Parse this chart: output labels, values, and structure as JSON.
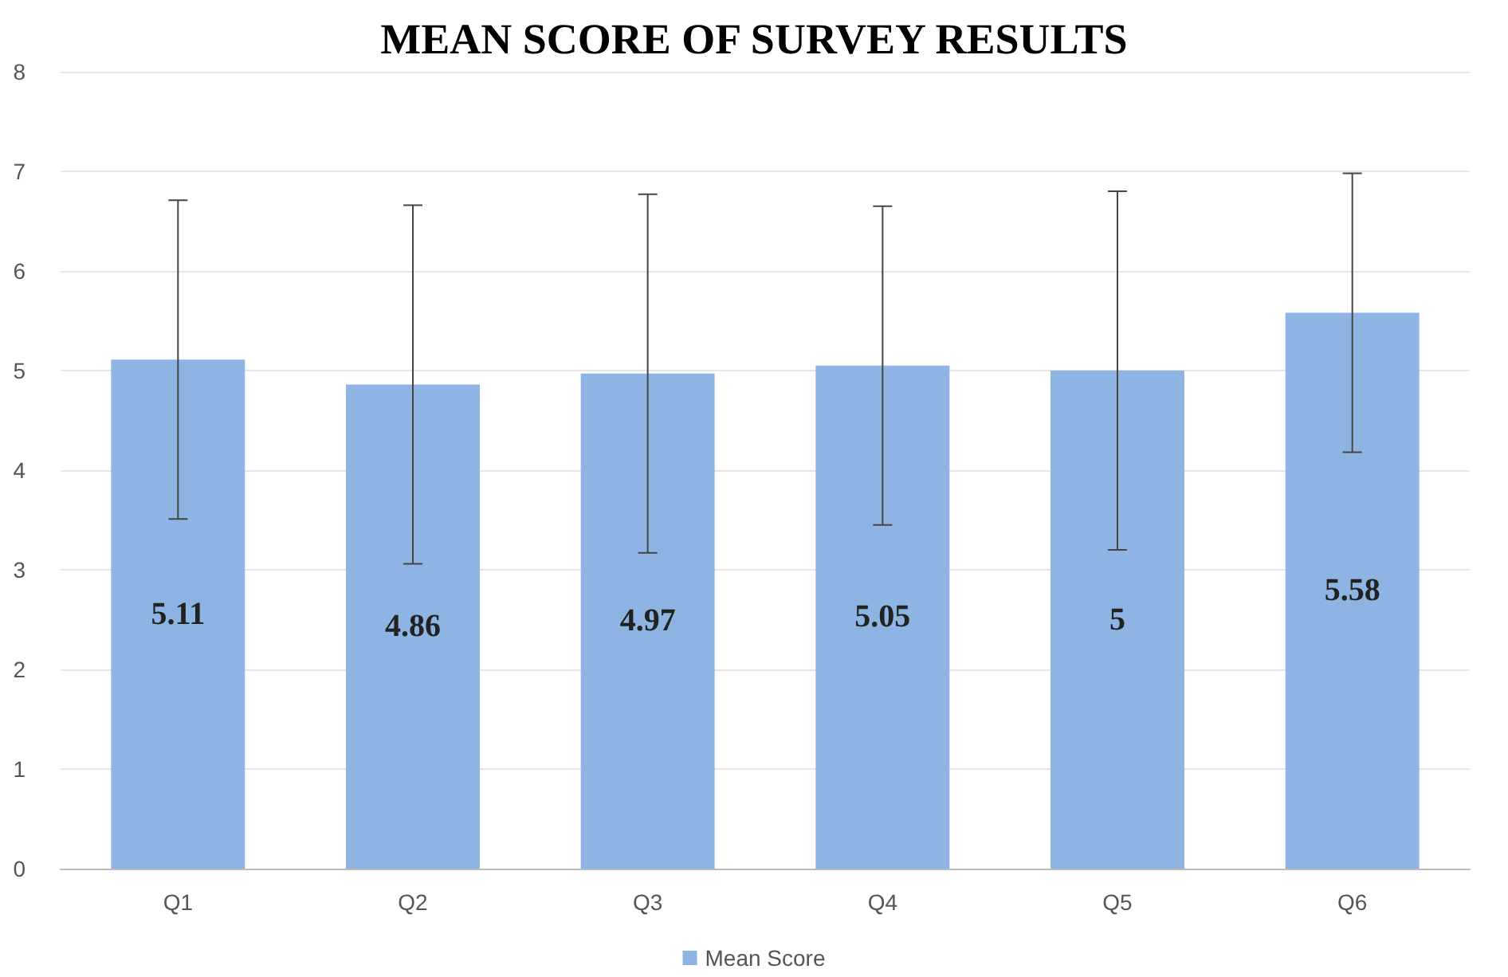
{
  "chart_data": {
    "type": "bar",
    "title": "MEAN SCORE OF SURVEY RESULTS",
    "categories": [
      "Q1",
      "Q2",
      "Q3",
      "Q4",
      "Q5",
      "Q6"
    ],
    "series": [
      {
        "name": "Mean Score",
        "color": "#8db4e2",
        "values": [
          5.11,
          4.86,
          4.97,
          5.05,
          5,
          5.58
        ],
        "errors": [
          1.6,
          1.8,
          1.8,
          1.6,
          1.8,
          1.4
        ]
      }
    ],
    "ylim": [
      0,
      8
    ],
    "yticks": [
      0,
      1,
      2,
      3,
      4,
      5,
      6,
      7,
      8
    ],
    "grid": "y",
    "legend": "bottom",
    "data_labels": true
  }
}
